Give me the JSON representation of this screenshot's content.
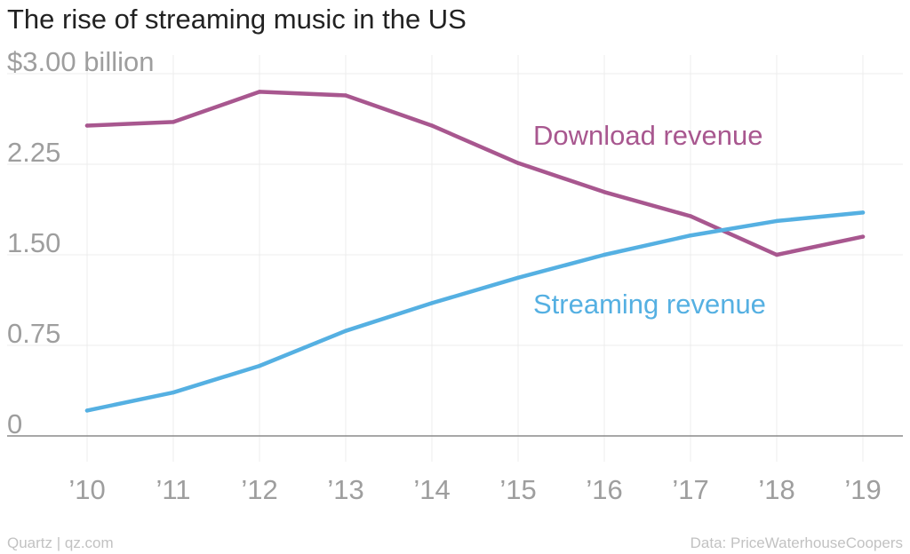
{
  "chart_data": {
    "type": "line",
    "title": "The rise of streaming music in the US",
    "xlabel": "",
    "ylabel": "",
    "categories": [
      "’10",
      "’11",
      "’12",
      "’13",
      "’14",
      "’15",
      "’16",
      "’17",
      "’18",
      "’19"
    ],
    "y_ticks": [
      {
        "value": 3.0,
        "label": "$3.00 billion"
      },
      {
        "value": 2.25,
        "label": "2.25"
      },
      {
        "value": 1.5,
        "label": "1.50"
      },
      {
        "value": 0.75,
        "label": "0.75"
      },
      {
        "value": 0,
        "label": "0"
      }
    ],
    "ylim": [
      0,
      3.0
    ],
    "grid": true,
    "series": [
      {
        "name": "Download revenue",
        "color": "#a8578f",
        "values": [
          2.57,
          2.6,
          2.85,
          2.82,
          2.57,
          2.26,
          2.02,
          1.82,
          1.5,
          1.65
        ]
      },
      {
        "name": "Streaming revenue",
        "color": "#55b0e2",
        "values": [
          0.21,
          0.36,
          0.58,
          0.87,
          1.1,
          1.31,
          1.5,
          1.66,
          1.78,
          1.85
        ]
      }
    ]
  },
  "footer": {
    "source_left": "Quartz | qz.com",
    "source_right": "Data: PriceWaterhouseCoopers"
  }
}
